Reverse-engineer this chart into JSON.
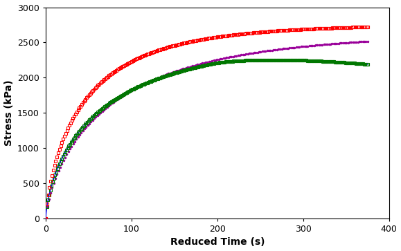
{
  "title": "",
  "xlabel": "Reduced Time (s)",
  "ylabel": "Stress (kPa)",
  "xlim": [
    0,
    400
  ],
  "ylim": [
    0,
    3000
  ],
  "xticks": [
    0,
    100,
    200,
    300,
    400
  ],
  "yticks": [
    0,
    500,
    1000,
    1500,
    2000,
    2500,
    3000
  ],
  "background_color": "#ffffff",
  "upper_red": {
    "color": "#ff0000",
    "peak": 2760,
    "rate": 0.06,
    "n_markers": 260
  },
  "upper_purple": {
    "color": "#990099",
    "peak": 2650,
    "rate": 0.042,
    "n_markers": 200,
    "start_t": 0
  },
  "lower_blue": {
    "color": "#0000ff",
    "linewidth": 1.0
  },
  "lower_green": {
    "color": "#007700",
    "n_markers": 280
  }
}
